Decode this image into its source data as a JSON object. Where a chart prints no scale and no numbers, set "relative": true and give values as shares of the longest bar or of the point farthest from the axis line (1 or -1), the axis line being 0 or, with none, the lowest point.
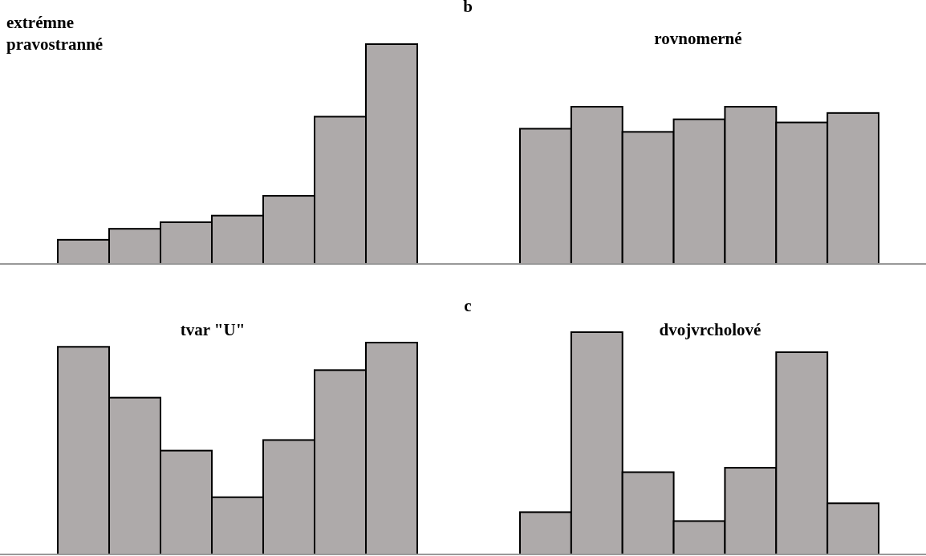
{
  "chart_data": [
    {
      "type": "bar",
      "title": "extrémne pravostranné",
      "relative": true,
      "categories": [
        null,
        null,
        null,
        null,
        null,
        null,
        null
      ],
      "values": [
        0.11,
        0.16,
        0.19,
        0.22,
        0.31,
        0.67,
        1
      ],
      "color": "#aeaaaa",
      "tick_labels": false
    },
    {
      "type": "bar",
      "title": "rovnomerné",
      "relative": true,
      "categories": [
        null,
        null,
        null,
        null,
        null,
        null,
        null
      ],
      "values": [
        0.86,
        1,
        0.84,
        0.92,
        1,
        0.9,
        0.96
      ],
      "color": "#aeaaaa",
      "tick_labels": false,
      "annotations": [
        "b"
      ]
    },
    {
      "type": "bar",
      "title": "tvar \"U\"",
      "relative": true,
      "categories": [
        null,
        null,
        null,
        null,
        null,
        null,
        null
      ],
      "values": [
        0.98,
        0.74,
        0.49,
        0.27,
        0.54,
        0.87,
        1
      ],
      "color": "#aeaaaa",
      "tick_labels": false
    },
    {
      "type": "bar",
      "title": "dvojvrcholové",
      "relative": true,
      "categories": [
        null,
        null,
        null,
        null,
        null,
        null,
        null
      ],
      "values": [
        0.19,
        1,
        0.37,
        0.15,
        0.39,
        0.91,
        0.23
      ],
      "color": "#aeaaaa",
      "tick_labels": false,
      "annotations": [
        "c"
      ]
    }
  ]
}
